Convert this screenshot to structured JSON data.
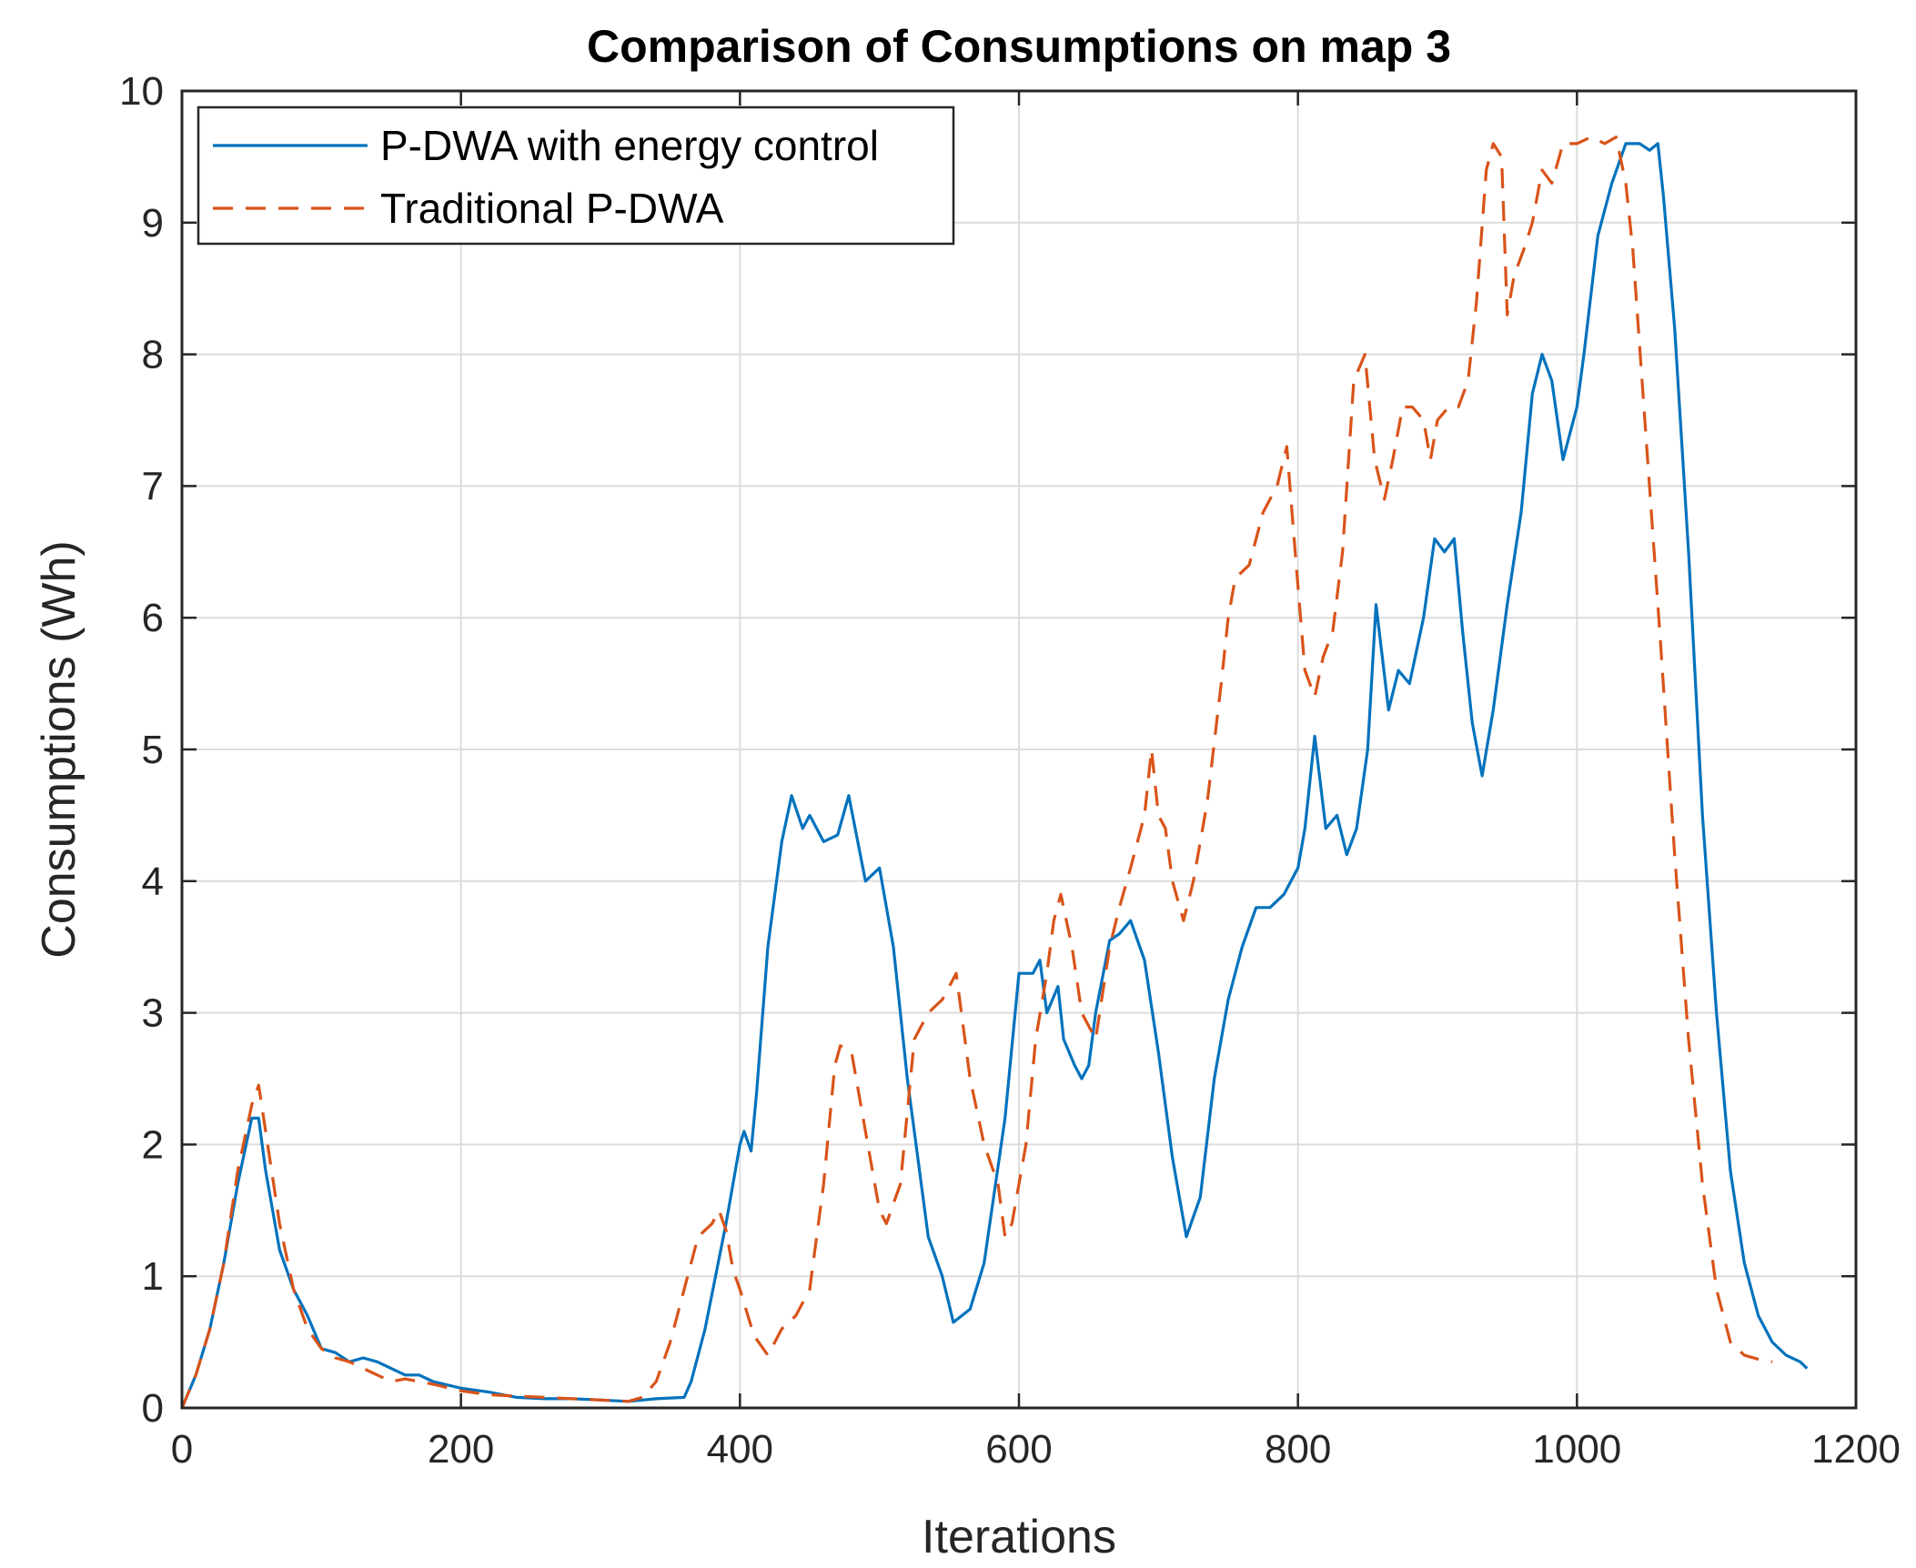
{
  "chart_data": {
    "type": "line",
    "title": "Comparison of Consumptions on map 3",
    "xlabel": "Iterations",
    "ylabel": "Consumptions (Wh)",
    "xlim": [
      0,
      1200
    ],
    "ylim": [
      0,
      10
    ],
    "xticks": [
      0,
      200,
      400,
      600,
      800,
      1000,
      1200
    ],
    "xtick_labels": [
      "0",
      "200",
      "400",
      "600",
      "800",
      "1000",
      "1200"
    ],
    "yticks": [
      0,
      1,
      2,
      3,
      4,
      5,
      6,
      7,
      8,
      9,
      10
    ],
    "ytick_labels": [
      "0",
      "1",
      "2",
      "3",
      "4",
      "5",
      "6",
      "7",
      "8",
      "9",
      "10"
    ],
    "grid": true,
    "legend_position": "top-left",
    "series": [
      {
        "name": "P-DWA with energy control",
        "color": "#0072BD",
        "style": "solid",
        "x": [
          0,
          10,
          20,
          30,
          40,
          50,
          55,
          60,
          70,
          80,
          90,
          100,
          110,
          120,
          130,
          140,
          150,
          160,
          170,
          180,
          200,
          220,
          240,
          260,
          280,
          300,
          320,
          340,
          360,
          365,
          375,
          390,
          400,
          403,
          408,
          412,
          420,
          430,
          437,
          445,
          450,
          460,
          470,
          478,
          490,
          500,
          510,
          520,
          535,
          545,
          553,
          565,
          575,
          590,
          600,
          610,
          615,
          620,
          628,
          632,
          640,
          645,
          650,
          655,
          665,
          672,
          680,
          690,
          700,
          710,
          720,
          730,
          740,
          750,
          760,
          770,
          780,
          790,
          800,
          805,
          812,
          820,
          828,
          835,
          842,
          850,
          856,
          865,
          872,
          880,
          890,
          898,
          905,
          912,
          918,
          925,
          932,
          940,
          950,
          960,
          968,
          975,
          982,
          990,
          1000,
          1005,
          1015,
          1025,
          1035,
          1045,
          1052,
          1058,
          1062,
          1070,
          1080,
          1090,
          1100,
          1110,
          1120,
          1130,
          1140,
          1150,
          1160,
          1165
        ],
        "values": [
          0.0,
          0.25,
          0.6,
          1.1,
          1.7,
          2.2,
          2.2,
          1.8,
          1.2,
          0.9,
          0.7,
          0.45,
          0.42,
          0.35,
          0.38,
          0.35,
          0.3,
          0.25,
          0.25,
          0.2,
          0.15,
          0.12,
          0.08,
          0.07,
          0.07,
          0.06,
          0.05,
          0.07,
          0.08,
          0.2,
          0.6,
          1.4,
          2.0,
          2.1,
          1.95,
          2.4,
          3.5,
          4.3,
          4.65,
          4.4,
          4.5,
          4.3,
          4.35,
          4.65,
          4.0,
          4.1,
          3.5,
          2.5,
          1.3,
          1.0,
          0.65,
          0.75,
          1.1,
          2.2,
          3.3,
          3.3,
          3.4,
          3.0,
          3.2,
          2.8,
          2.6,
          2.5,
          2.6,
          3.0,
          3.55,
          3.6,
          3.7,
          3.4,
          2.7,
          1.9,
          1.3,
          1.6,
          2.5,
          3.1,
          3.5,
          3.8,
          3.8,
          3.9,
          4.1,
          4.4,
          5.1,
          4.4,
          4.5,
          4.2,
          4.4,
          5.0,
          6.1,
          5.3,
          5.6,
          5.5,
          6.0,
          6.6,
          6.5,
          6.6,
          5.9,
          5.2,
          4.8,
          5.3,
          6.1,
          6.8,
          7.7,
          8.0,
          7.8,
          7.2,
          7.6,
          8.0,
          8.9,
          9.3,
          9.6,
          9.6,
          9.55,
          9.6,
          9.2,
          8.2,
          6.5,
          4.5,
          3.0,
          1.8,
          1.1,
          0.7,
          0.5,
          0.4,
          0.35,
          0.3
        ]
      },
      {
        "name": "Traditional P-DWA",
        "color": "#D95319",
        "style": "dashed",
        "x": [
          0,
          10,
          20,
          30,
          40,
          50,
          55,
          60,
          70,
          80,
          90,
          100,
          110,
          120,
          130,
          140,
          150,
          160,
          170,
          180,
          200,
          220,
          240,
          260,
          280,
          300,
          320,
          330,
          340,
          350,
          360,
          370,
          380,
          385,
          390,
          395,
          400,
          410,
          420,
          425,
          430,
          440,
          450,
          460,
          468,
          472,
          480,
          490,
          500,
          505,
          515,
          525,
          535,
          545,
          555,
          565,
          575,
          585,
          590,
          595,
          605,
          612,
          620,
          625,
          630,
          638,
          645,
          655,
          665,
          672,
          680,
          690,
          695,
          700,
          705,
          710,
          718,
          725,
          735,
          745,
          750,
          755,
          765,
          770,
          775,
          785,
          792,
          798,
          805,
          812,
          818,
          825,
          832,
          840,
          848,
          855,
          862,
          868,
          875,
          882,
          890,
          895,
          900,
          908,
          915,
          922,
          928,
          935,
          940,
          946,
          950,
          955,
          962,
          968,
          975,
          982,
          990,
          1000,
          1010,
          1020,
          1028,
          1035,
          1040,
          1050,
          1060,
          1070,
          1080,
          1090,
          1100,
          1110,
          1120,
          1130,
          1140
        ],
        "values": [
          0.0,
          0.25,
          0.6,
          1.1,
          1.8,
          2.3,
          2.45,
          2.1,
          1.4,
          0.9,
          0.6,
          0.45,
          0.38,
          0.35,
          0.3,
          0.25,
          0.2,
          0.22,
          0.2,
          0.18,
          0.13,
          0.1,
          0.09,
          0.08,
          0.07,
          0.06,
          0.05,
          0.08,
          0.2,
          0.5,
          0.9,
          1.3,
          1.4,
          1.5,
          1.35,
          1.05,
          0.9,
          0.55,
          0.4,
          0.5,
          0.6,
          0.7,
          0.9,
          1.7,
          2.6,
          2.75,
          2.7,
          2.1,
          1.5,
          1.4,
          1.7,
          2.8,
          3.0,
          3.1,
          3.3,
          2.5,
          2.0,
          1.7,
          1.3,
          1.4,
          2.0,
          2.8,
          3.3,
          3.7,
          3.9,
          3.5,
          3.0,
          2.8,
          3.5,
          3.8,
          4.1,
          4.5,
          5.0,
          4.5,
          4.4,
          4.0,
          3.7,
          4.0,
          4.6,
          5.5,
          6.0,
          6.3,
          6.4,
          6.6,
          6.8,
          7.0,
          7.3,
          6.5,
          5.6,
          5.4,
          5.7,
          5.9,
          6.5,
          7.8,
          8.0,
          7.2,
          6.9,
          7.2,
          7.6,
          7.6,
          7.5,
          7.2,
          7.5,
          7.6,
          7.6,
          7.8,
          8.4,
          9.4,
          9.6,
          9.5,
          8.3,
          8.6,
          8.8,
          9.0,
          9.4,
          9.3,
          9.6,
          9.6,
          9.65,
          9.6,
          9.65,
          9.3,
          8.8,
          7.3,
          5.8,
          4.2,
          2.8,
          1.7,
          0.9,
          0.5,
          0.4,
          0.37,
          0.35
        ]
      }
    ]
  }
}
